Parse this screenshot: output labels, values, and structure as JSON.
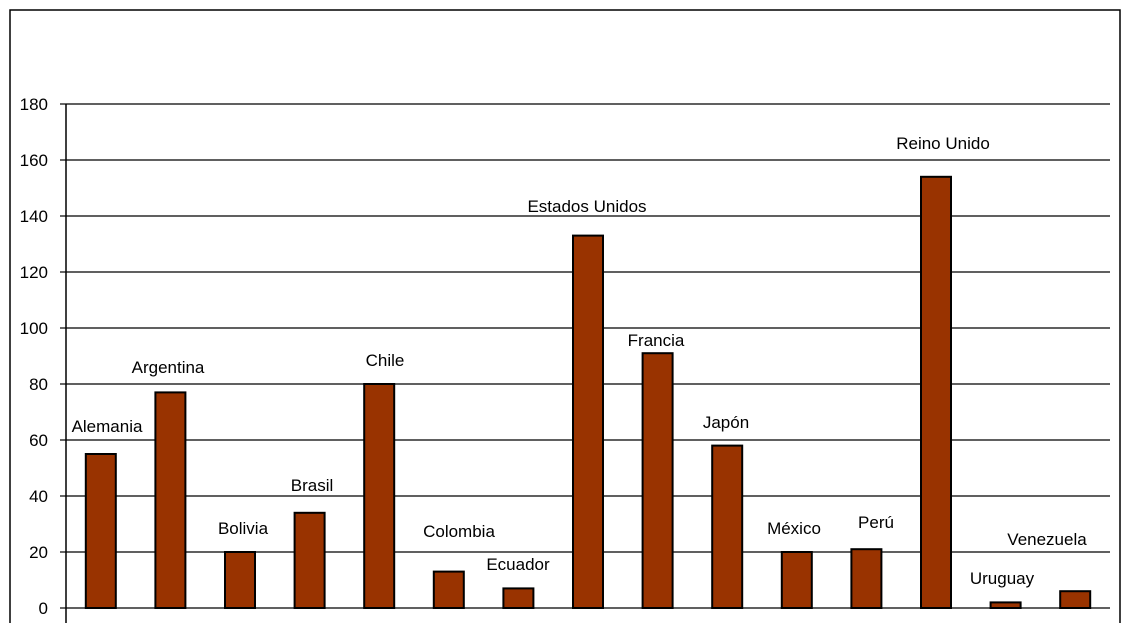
{
  "chart_data": {
    "type": "bar",
    "categories": [
      "Alemania",
      "Argentina",
      "Bolivia",
      "Brasil",
      "Chile",
      "Colombia",
      "Ecuador",
      "Estados Unidos",
      "Francia",
      "Japón",
      "México",
      "Perú",
      "Reino Unido",
      "Uruguay",
      "Venezuela"
    ],
    "values": [
      55,
      77,
      20,
      34,
      80,
      13,
      7,
      133,
      91,
      58,
      20,
      21,
      154,
      2,
      6
    ],
    "ylim": [
      0,
      180
    ],
    "yticks": [
      "0",
      "20",
      "40",
      "60",
      "80",
      "100",
      "120",
      "140",
      "160",
      "180"
    ],
    "grid": true,
    "legend": "none",
    "title": "",
    "xlabel": "",
    "ylabel": "",
    "bar_color": "#993300",
    "bar_stroke": "#000000"
  }
}
